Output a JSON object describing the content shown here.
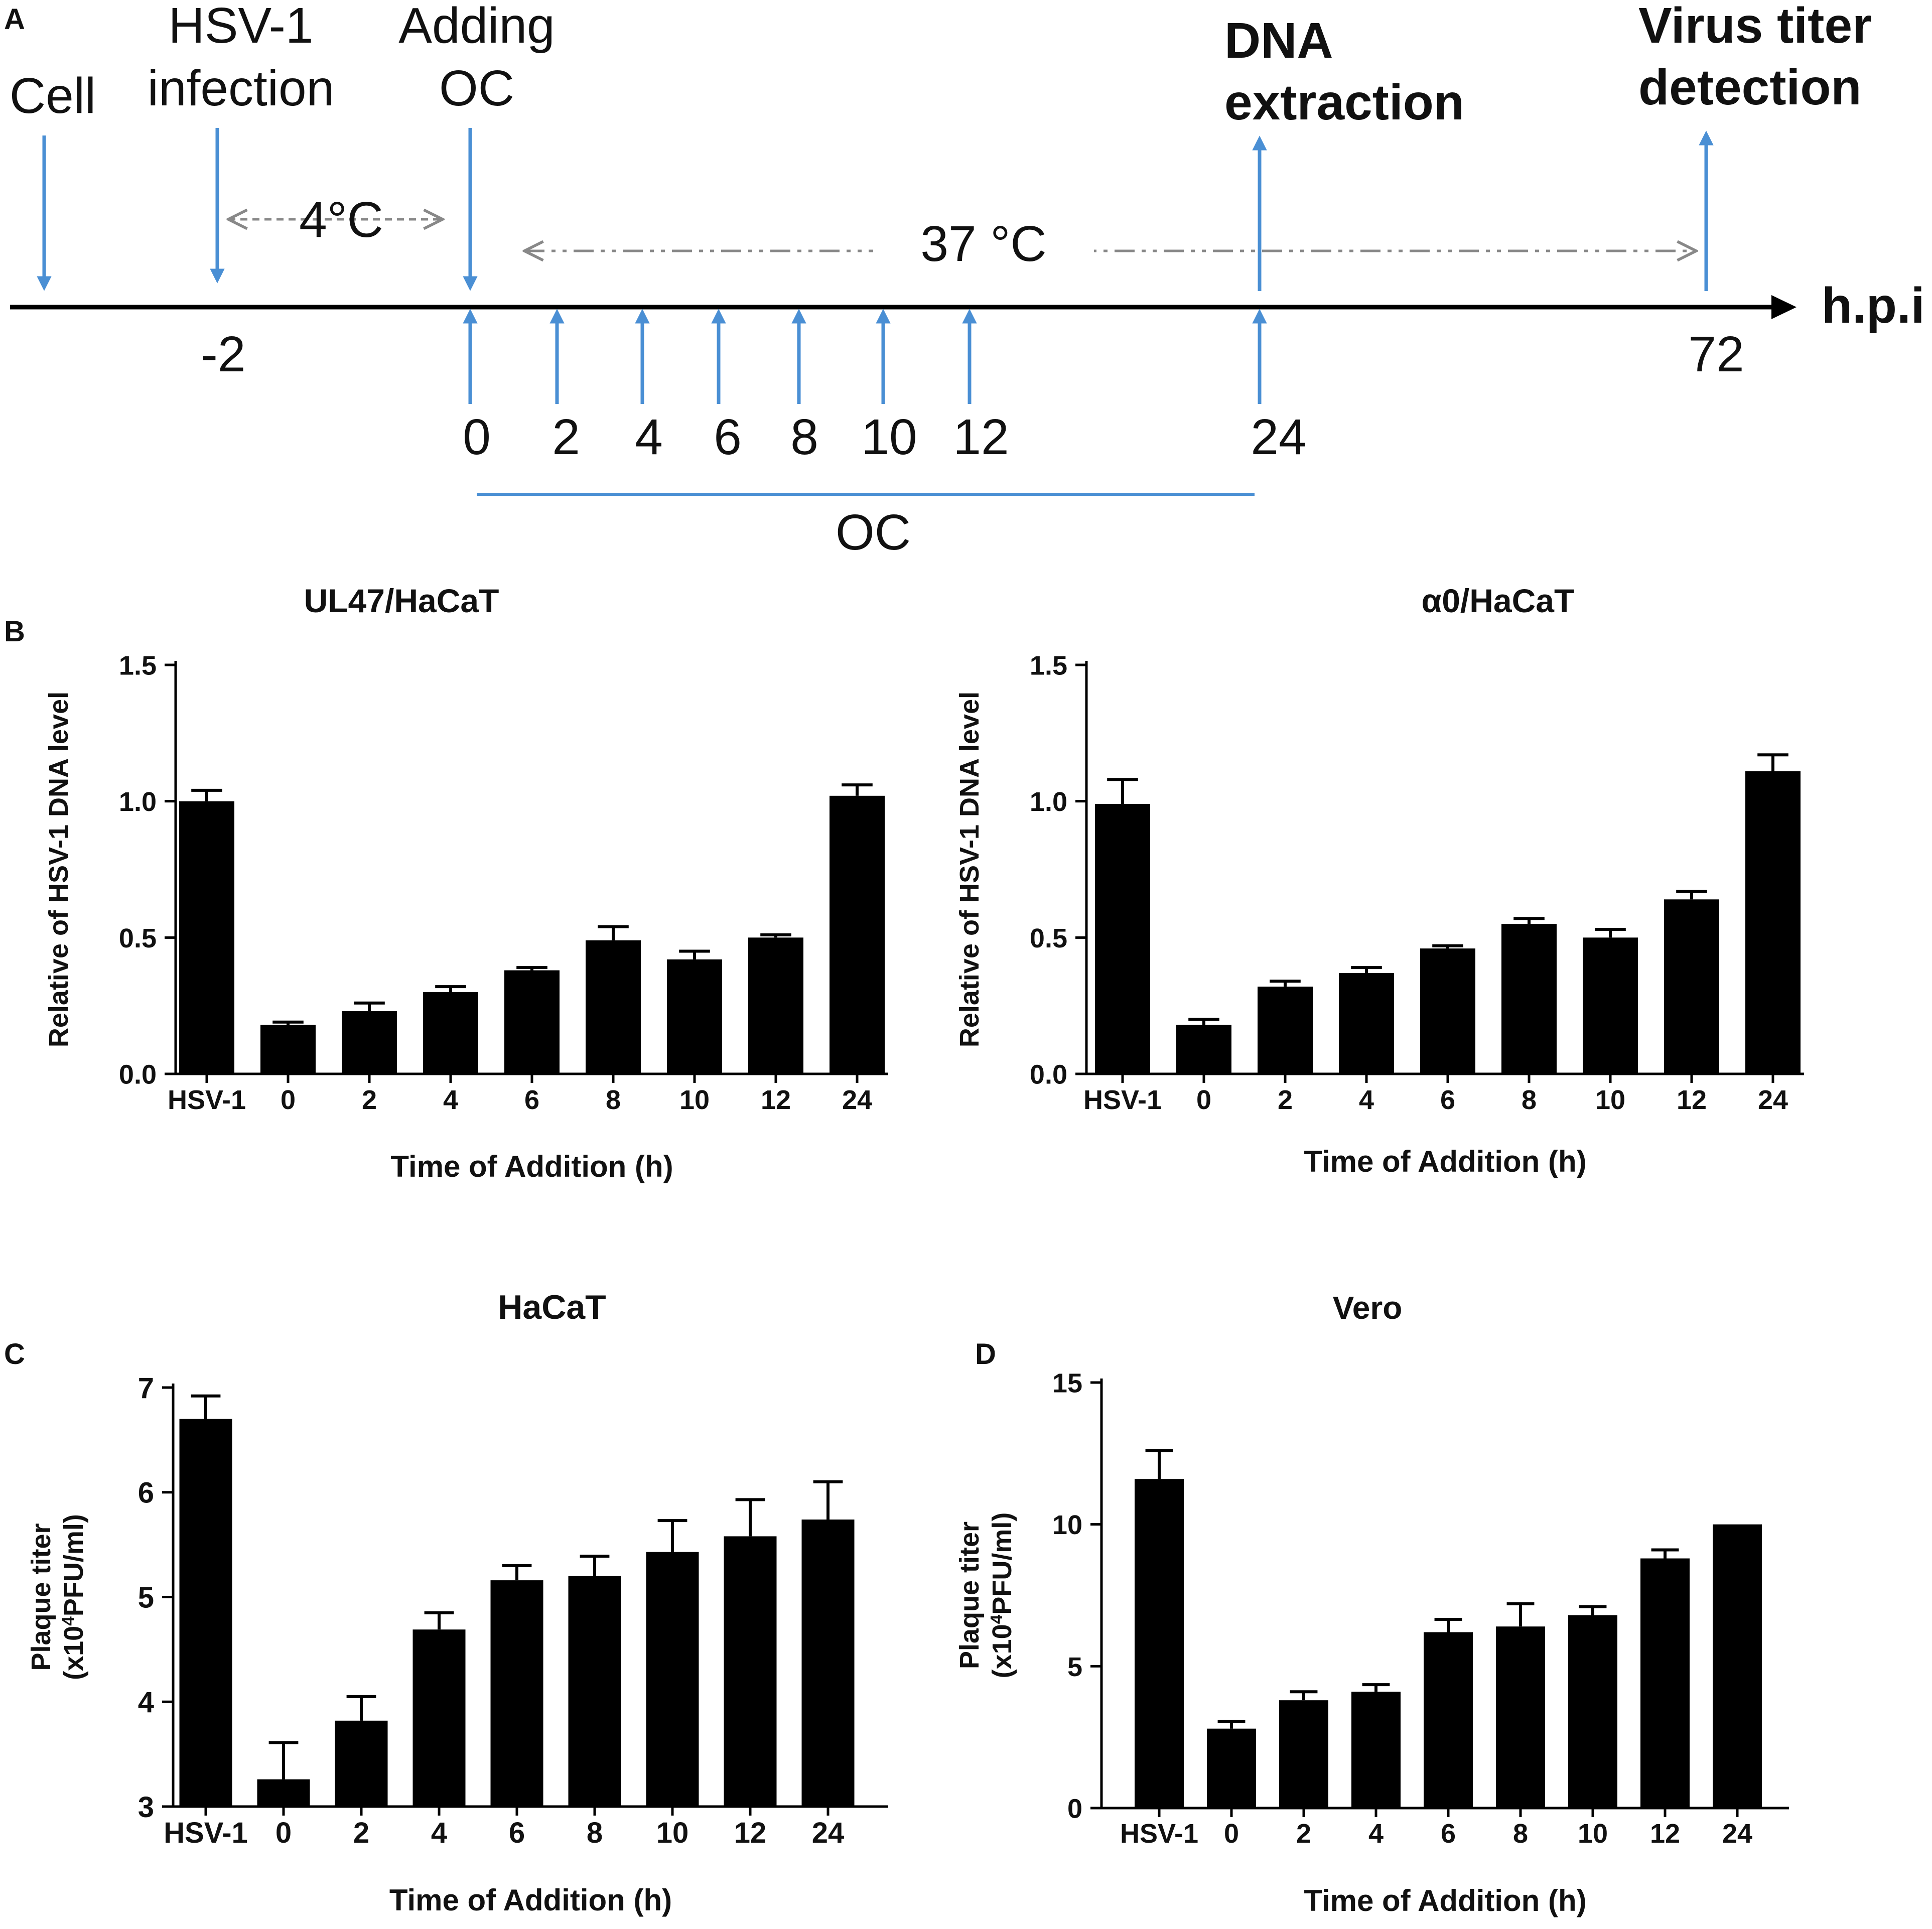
{
  "panel_labels": {
    "a": "A",
    "b": "B",
    "c": "C",
    "d": "D"
  },
  "timeline": {
    "events": {
      "cell": "Cell",
      "infection_line1": "HSV-1",
      "infection_line2": "infection",
      "adding_line1": "Adding",
      "adding_line2": "OC",
      "dna_line1": "DNA",
      "dna_line2": "extraction",
      "titer_line1": "Virus titer",
      "titer_line2": "detection"
    },
    "temp_cold": "4°C",
    "temp_warm": "37 °C",
    "axis_unit": "h.p.i",
    "tick_neg2": "-2",
    "tick_72": "72",
    "addition_times": [
      "0",
      "2",
      "4",
      "6",
      "8",
      "10",
      "12",
      "24"
    ],
    "oc_label": "OC",
    "colors": {
      "arrow": "#4a8fd4",
      "axis": "#000000",
      "dashed": "#888888"
    }
  },
  "chart_data": [
    {
      "id": "B-left",
      "type": "bar",
      "title": "UL47/HaCaT",
      "xlabel": "Time of Addition (h)",
      "ylabel": "Relative of HSV-1 DNA level",
      "categories": [
        "HSV-1",
        "0",
        "2",
        "4",
        "6",
        "8",
        "10",
        "12",
        "24"
      ],
      "values": [
        1.0,
        0.18,
        0.23,
        0.3,
        0.38,
        0.49,
        0.42,
        0.5,
        1.02
      ],
      "errors": [
        0.04,
        0.01,
        0.03,
        0.02,
        0.01,
        0.05,
        0.03,
        0.01,
        0.04
      ],
      "ylim": [
        0,
        1.5
      ],
      "yticks": [
        "0.0",
        "0.5",
        "1.0",
        "1.5"
      ]
    },
    {
      "id": "B-right",
      "type": "bar",
      "title": "α0/HaCaT",
      "xlabel": "Time of Addition (h)",
      "ylabel": "Relative of HSV-1 DNA level",
      "categories": [
        "HSV-1",
        "0",
        "2",
        "4",
        "6",
        "8",
        "10",
        "12",
        "24"
      ],
      "values": [
        0.99,
        0.18,
        0.32,
        0.37,
        0.46,
        0.55,
        0.5,
        0.64,
        1.11
      ],
      "errors": [
        0.09,
        0.02,
        0.02,
        0.02,
        0.01,
        0.02,
        0.03,
        0.03,
        0.06
      ],
      "ylim": [
        0,
        1.5
      ],
      "yticks": [
        "0.0",
        "0.5",
        "1.0",
        "1.5"
      ]
    },
    {
      "id": "C",
      "type": "bar",
      "title": "HaCaT",
      "xlabel": "Time of Addition (h)",
      "ylabel_line1": "Plaque titer",
      "ylabel_prefix": "(x10",
      "ylabel_sup": "4",
      "ylabel_suffix": "PFU/ml)",
      "categories": [
        "HSV-1",
        "0",
        "2",
        "4",
        "6",
        "8",
        "10",
        "12",
        "24"
      ],
      "values": [
        6.7,
        3.26,
        3.82,
        4.69,
        5.16,
        5.2,
        5.43,
        5.58,
        5.74
      ],
      "errors": [
        0.22,
        0.35,
        0.23,
        0.16,
        0.14,
        0.19,
        0.3,
        0.35,
        0.36
      ],
      "ylim": [
        3,
        7
      ],
      "yticks": [
        "3",
        "4",
        "5",
        "6",
        "7"
      ]
    },
    {
      "id": "D",
      "type": "bar",
      "title": "Vero",
      "xlabel": "Time of Addition (h)",
      "ylabel_line1": "Plaque titer",
      "ylabel_prefix": "(x10",
      "ylabel_sup": "4",
      "ylabel_suffix": "PFU/ml)",
      "categories": [
        "HSV-1",
        "0",
        "2",
        "4",
        "6",
        "8",
        "10",
        "12",
        "24"
      ],
      "values": [
        11.6,
        2.8,
        3.8,
        4.1,
        6.2,
        6.4,
        6.8,
        8.8,
        10.0
      ],
      "errors": [
        1.0,
        0.25,
        0.3,
        0.25,
        0.45,
        0.8,
        0.3,
        0.3,
        0.0
      ],
      "ylim": [
        0,
        15
      ],
      "yticks": [
        "0",
        "5",
        "10",
        "15"
      ]
    }
  ]
}
